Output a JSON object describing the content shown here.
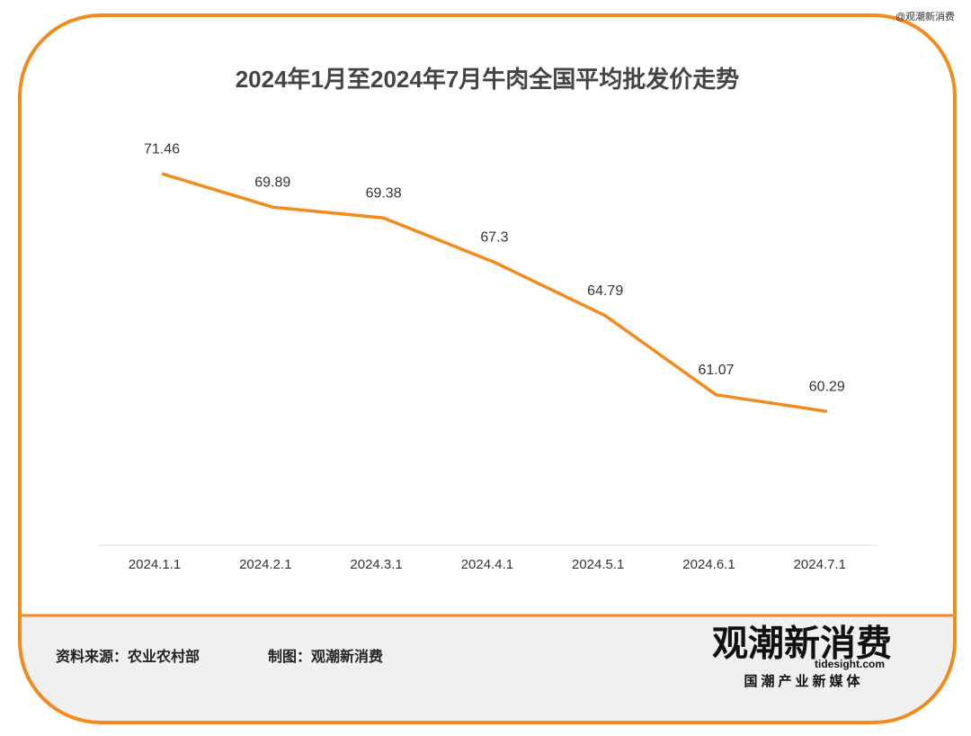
{
  "handle": "@观潮新消费",
  "chart_data": {
    "type": "line",
    "title": "2024年1月至2024年7月牛肉全国平均批发价走势",
    "categories": [
      "2024.1.1",
      "2024.2.1",
      "2024.3.1",
      "2024.4.1",
      "2024.5.1",
      "2024.6.1",
      "2024.7.1"
    ],
    "values": [
      71.46,
      69.89,
      69.38,
      67.3,
      64.79,
      61.07,
      60.29
    ],
    "color": "#f28a1c",
    "ylim": [
      54,
      74
    ]
  },
  "footer": {
    "source": "资料来源：农业农村部",
    "credit": "制图：观潮新消费",
    "logo": "观潮新消费",
    "logo_site": "tidesight.com",
    "logo_tagline": "国潮产业新媒体"
  }
}
